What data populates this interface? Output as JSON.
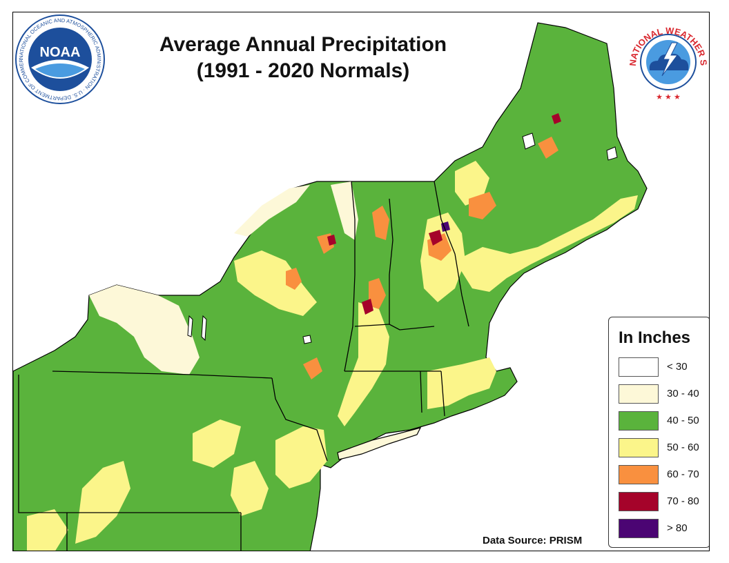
{
  "title": {
    "line1": "Average Annual Precipitation",
    "line2": "(1991 - 2020 Normals)"
  },
  "noaa_logo": {
    "center_text": "NOAA",
    "ring_text": "NATIONAL OCEANIC AND ATMOSPHERIC ADMINISTRATION · U.S. DEPARTMENT OF COMMERCE ·",
    "icon": "noaa-seagull-logo"
  },
  "nws_logo": {
    "ring_text": "NATIONAL WEATHER SERVICE",
    "icon": "nws-cloud-lightning-logo",
    "ring_color": "#d9282f"
  },
  "legend": {
    "title": "In Inches",
    "items": [
      {
        "label": "< 30",
        "color": "#ffffff"
      },
      {
        "label": "30 - 40",
        "color": "#fdf8d8"
      },
      {
        "label": "40 - 50",
        "color": "#5ab33c"
      },
      {
        "label": "50 - 60",
        "color": "#fbf58a"
      },
      {
        "label": "60 - 70",
        "color": "#f9903f"
      },
      {
        "label": "70 - 80",
        "color": "#a5032a"
      },
      {
        "label": "> 80",
        "color": "#4b0573"
      }
    ]
  },
  "data_source": "Data Source: PRISM"
}
